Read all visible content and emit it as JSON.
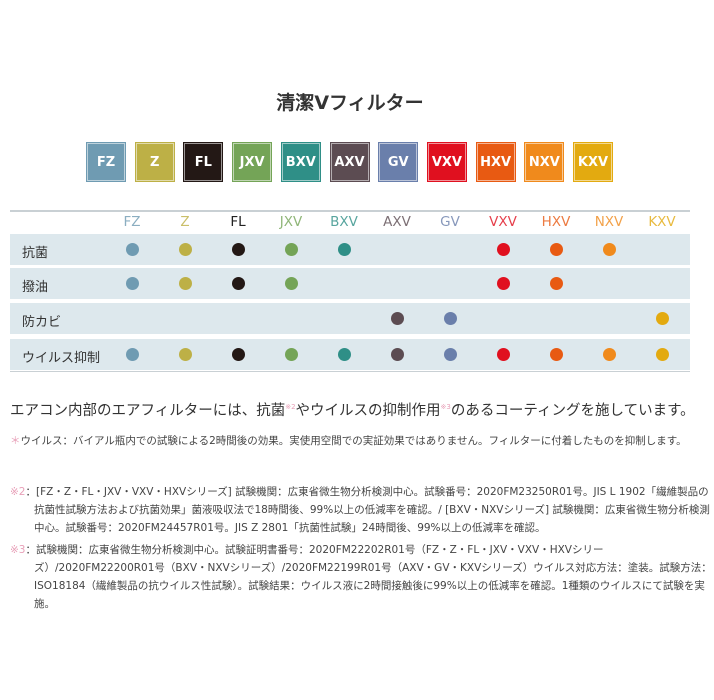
{
  "title": "清潔Vフィルター",
  "filters": [
    {
      "code": "FZ",
      "color": "#6f9bb2"
    },
    {
      "code": "Z",
      "color": "#bdb046"
    },
    {
      "code": "FL",
      "color": "#231815"
    },
    {
      "code": "JXV",
      "color": "#74a457"
    },
    {
      "code": "BXV",
      "color": "#2f8f87"
    },
    {
      "code": "AXV",
      "color": "#5c4c52"
    },
    {
      "code": "GV",
      "color": "#6a7fab"
    },
    {
      "code": "VXV",
      "color": "#e0101f"
    },
    {
      "code": "HXV",
      "color": "#e85a12"
    },
    {
      "code": "NXV",
      "color": "#f08a1c"
    },
    {
      "code": "KXV",
      "color": "#e3aa10"
    }
  ],
  "table": {
    "rows": [
      {
        "label": "抗菌",
        "has": [
          "FZ",
          "Z",
          "FL",
          "JXV",
          "BXV",
          "VXV",
          "HXV",
          "NXV"
        ]
      },
      {
        "label": "撥油",
        "has": [
          "FZ",
          "Z",
          "FL",
          "JXV",
          "VXV",
          "HXV"
        ]
      },
      {
        "label": "防カビ",
        "has": [
          "AXV",
          "GV",
          "KXV"
        ]
      },
      {
        "label": "ウイルス抑制",
        "has": [
          "FZ",
          "Z",
          "FL",
          "JXV",
          "BXV",
          "AXV",
          "GV",
          "VXV",
          "HXV",
          "NXV",
          "KXV"
        ]
      }
    ]
  },
  "main_text": {
    "a": "エアコン内部のエアフィルターには、抗菌",
    "sup2": "※2",
    "b": "やウイルスの抑制作用",
    "sup3": "※3",
    "c": "のあるコーティングを施しています。"
  },
  "notes": [
    {
      "mark": "＊",
      "text": "ウイルス：バイアル瓶内での試験による2時間後の効果。実使用空間での実証効果ではありません。フィルターに付着したものを抑制します。"
    },
    {
      "mark": "※2",
      "text": "：[FZ・Z・FL・JXV・VXV・HXVシリーズ] 試験機関：広東省微生物分析検測中心。試験番号：2020FM23250R01号。JIS L 1902「繊維製品の抗菌性試験方法および抗菌効果」菌液吸収法で18時間後、99%以上の低減率を確認。/ [BXV・NXVシリーズ] 試験機関：広東省微生物分析検測中心。試験番号：2020FM24457R01号。JIS Z 2801「抗菌性試験」24時間後、99%以上の低減率を確認。"
    },
    {
      "mark": "※3",
      "text": "：試験機関：広東省微生物分析検測中心。試験証明書番号：2020FM22202R01号（FZ・Z・FL・JXV・VXV・HXVシリーズ）/2020FM22200R01号（BXV・NXVシリーズ）/2020FM22199R01号（AXV・GV・KXVシリーズ）ウイルス対応方法：塗装。試験方法：ISO18184（繊維製品の抗ウイルス性試験）。試験結果：ウイルス液に2時間接触後に99%以上の低減率を確認。1種類のウイルスにて試験を実施。"
    }
  ]
}
